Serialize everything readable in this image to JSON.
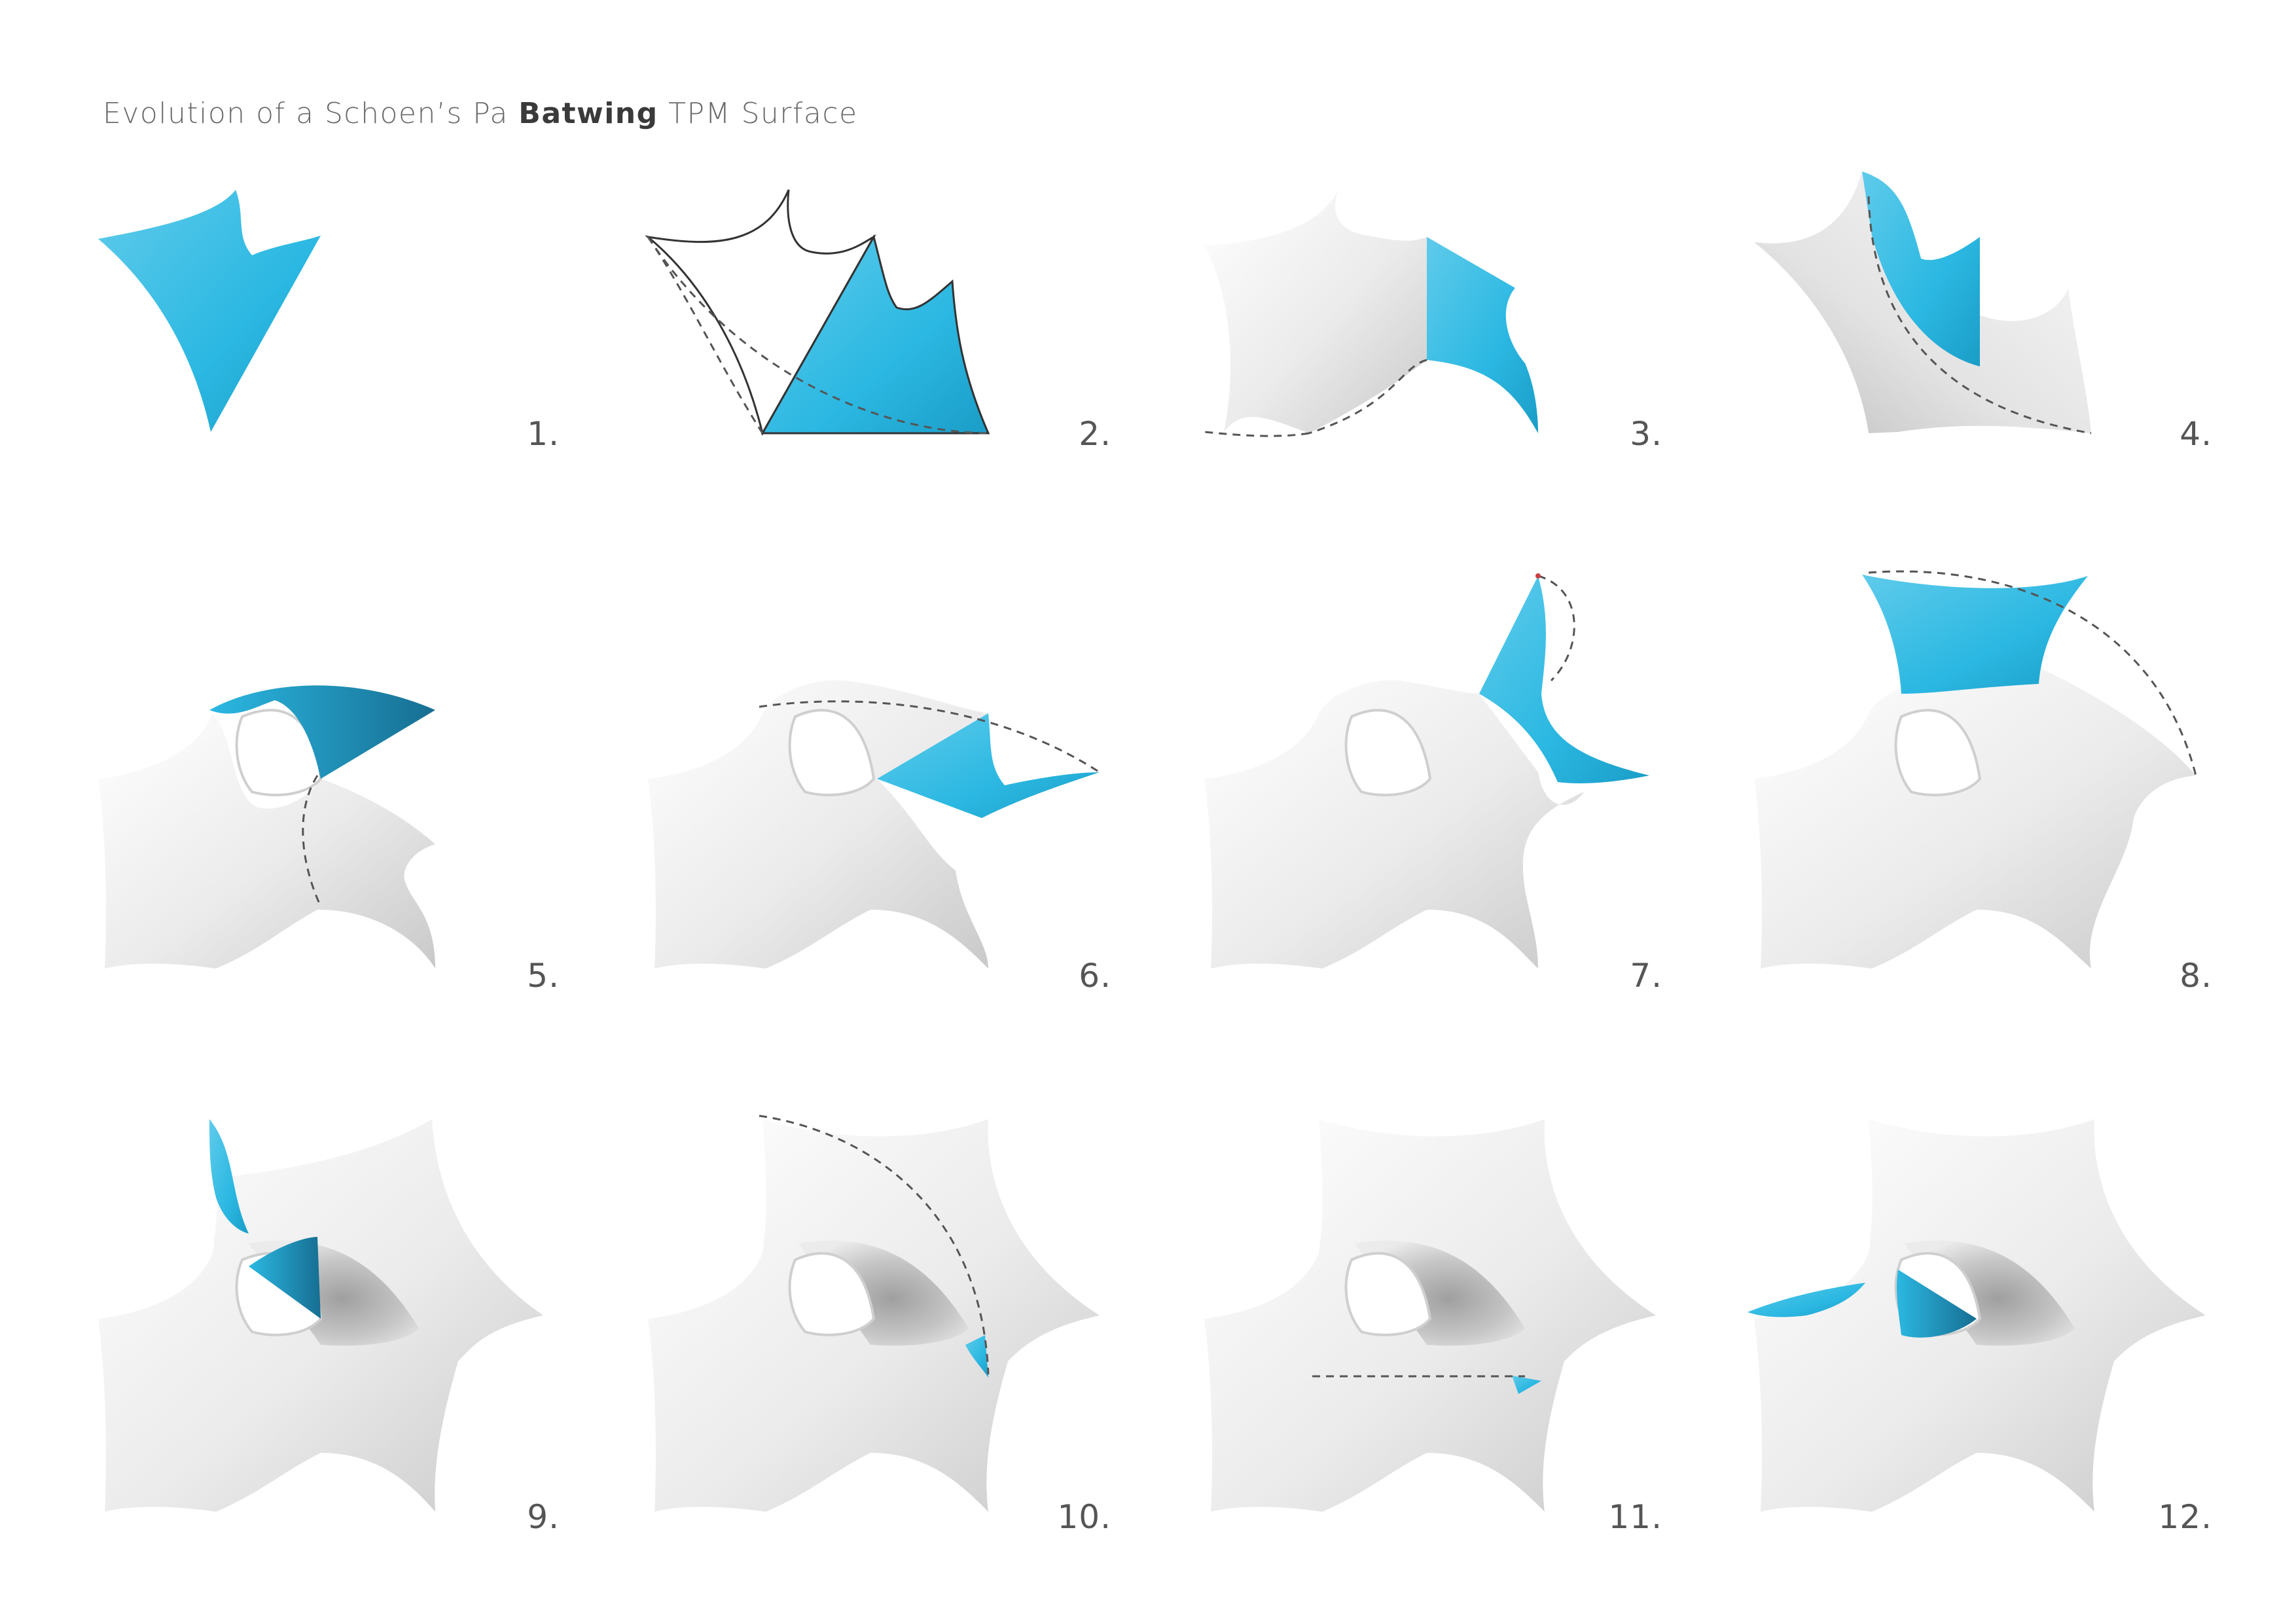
{
  "title": {
    "prefix": "Evolution of a Schoen’s Pa",
    "bold": "Batwing",
    "suffix": "TPM Surface"
  },
  "steps": [
    {
      "label": "1."
    },
    {
      "label": "2."
    },
    {
      "label": "3."
    },
    {
      "label": "4."
    },
    {
      "label": "5."
    },
    {
      "label": "6."
    },
    {
      "label": "7."
    },
    {
      "label": "8."
    },
    {
      "label": "9."
    },
    {
      "label": "10."
    },
    {
      "label": "11."
    },
    {
      "label": "12."
    }
  ],
  "colors": {
    "accent": "#2BB8E2",
    "surface": "#EDEDED",
    "shadow": "#9A9A9A",
    "dashed_line": "#555555"
  }
}
